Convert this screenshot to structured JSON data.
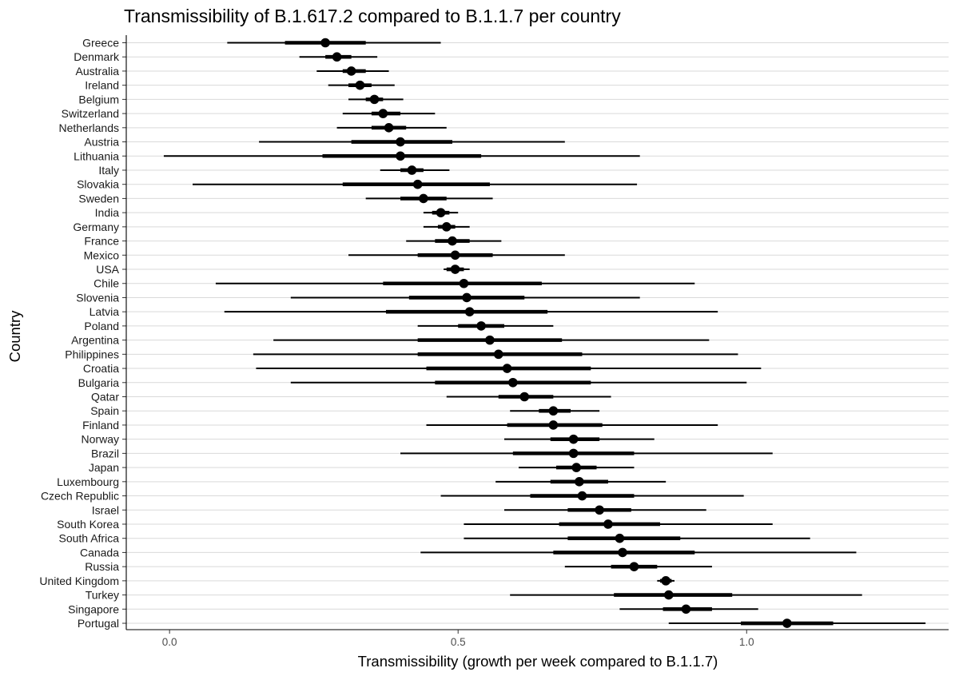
{
  "chart_data": {
    "type": "scatter",
    "title": "Transmissibility of B.1.617.2 compared to B.1.1.7 per country",
    "xlabel": "Transmissibility (growth per week compared to B.1.1.7)",
    "ylabel": "Country",
    "xlim": [
      -0.075,
      1.35
    ],
    "x_ticks": [
      0.0,
      0.5,
      1.0
    ],
    "x_tick_labels": [
      "0.0",
      "0.5",
      "1.0"
    ],
    "grid": "horizontal major lines per country",
    "marker": "point estimate with inner (thick) and outer (thin) interval",
    "series": [
      {
        "country": "Greece",
        "estimate": 0.27,
        "inner": [
          0.2,
          0.34
        ],
        "outer": [
          0.1,
          0.47
        ]
      },
      {
        "country": "Denmark",
        "estimate": 0.29,
        "inner": [
          0.27,
          0.315
        ],
        "outer": [
          0.225,
          0.36
        ]
      },
      {
        "country": "Australia",
        "estimate": 0.315,
        "inner": [
          0.3,
          0.34
        ],
        "outer": [
          0.255,
          0.38
        ]
      },
      {
        "country": "Ireland",
        "estimate": 0.33,
        "inner": [
          0.31,
          0.35
        ],
        "outer": [
          0.275,
          0.39
        ]
      },
      {
        "country": "Belgium",
        "estimate": 0.355,
        "inner": [
          0.34,
          0.37
        ],
        "outer": [
          0.31,
          0.405
        ]
      },
      {
        "country": "Switzerland",
        "estimate": 0.37,
        "inner": [
          0.35,
          0.4
        ],
        "outer": [
          0.3,
          0.46
        ]
      },
      {
        "country": "Netherlands",
        "estimate": 0.38,
        "inner": [
          0.35,
          0.41
        ],
        "outer": [
          0.29,
          0.48
        ]
      },
      {
        "country": "Austria",
        "estimate": 0.4,
        "inner": [
          0.315,
          0.49
        ],
        "outer": [
          0.155,
          0.685
        ]
      },
      {
        "country": "Lithuania",
        "estimate": 0.4,
        "inner": [
          0.265,
          0.54
        ],
        "outer": [
          -0.01,
          0.815
        ]
      },
      {
        "country": "Italy",
        "estimate": 0.42,
        "inner": [
          0.4,
          0.44
        ],
        "outer": [
          0.365,
          0.485
        ]
      },
      {
        "country": "Slovakia",
        "estimate": 0.43,
        "inner": [
          0.3,
          0.555
        ],
        "outer": [
          0.04,
          0.81
        ]
      },
      {
        "country": "Sweden",
        "estimate": 0.44,
        "inner": [
          0.4,
          0.48
        ],
        "outer": [
          0.34,
          0.56
        ]
      },
      {
        "country": "India",
        "estimate": 0.47,
        "inner": [
          0.455,
          0.485
        ],
        "outer": [
          0.44,
          0.5
        ]
      },
      {
        "country": "Germany",
        "estimate": 0.48,
        "inner": [
          0.465,
          0.495
        ],
        "outer": [
          0.44,
          0.52
        ]
      },
      {
        "country": "France",
        "estimate": 0.49,
        "inner": [
          0.46,
          0.52
        ],
        "outer": [
          0.41,
          0.575
        ]
      },
      {
        "country": "Mexico",
        "estimate": 0.495,
        "inner": [
          0.43,
          0.56
        ],
        "outer": [
          0.31,
          0.685
        ]
      },
      {
        "country": "USA",
        "estimate": 0.495,
        "inner": [
          0.48,
          0.51
        ],
        "outer": [
          0.475,
          0.52
        ]
      },
      {
        "country": "Chile",
        "estimate": 0.51,
        "inner": [
          0.37,
          0.645
        ],
        "outer": [
          0.08,
          0.91
        ]
      },
      {
        "country": "Slovenia",
        "estimate": 0.515,
        "inner": [
          0.415,
          0.615
        ],
        "outer": [
          0.21,
          0.815
        ]
      },
      {
        "country": "Latvia",
        "estimate": 0.52,
        "inner": [
          0.375,
          0.655
        ],
        "outer": [
          0.095,
          0.95
        ]
      },
      {
        "country": "Poland",
        "estimate": 0.54,
        "inner": [
          0.5,
          0.58
        ],
        "outer": [
          0.43,
          0.665
        ]
      },
      {
        "country": "Argentina",
        "estimate": 0.555,
        "inner": [
          0.43,
          0.68
        ],
        "outer": [
          0.18,
          0.935
        ]
      },
      {
        "country": "Philippines",
        "estimate": 0.57,
        "inner": [
          0.43,
          0.715
        ],
        "outer": [
          0.145,
          0.985
        ]
      },
      {
        "country": "Croatia",
        "estimate": 0.585,
        "inner": [
          0.445,
          0.73
        ],
        "outer": [
          0.15,
          1.025
        ]
      },
      {
        "country": "Bulgaria",
        "estimate": 0.595,
        "inner": [
          0.46,
          0.73
        ],
        "outer": [
          0.21,
          1.0
        ]
      },
      {
        "country": "Qatar",
        "estimate": 0.615,
        "inner": [
          0.57,
          0.665
        ],
        "outer": [
          0.48,
          0.765
        ]
      },
      {
        "country": "Spain",
        "estimate": 0.665,
        "inner": [
          0.64,
          0.695
        ],
        "outer": [
          0.59,
          0.745
        ]
      },
      {
        "country": "Finland",
        "estimate": 0.665,
        "inner": [
          0.585,
          0.75
        ],
        "outer": [
          0.445,
          0.95
        ]
      },
      {
        "country": "Norway",
        "estimate": 0.7,
        "inner": [
          0.66,
          0.745
        ],
        "outer": [
          0.58,
          0.84
        ]
      },
      {
        "country": "Brazil",
        "estimate": 0.7,
        "inner": [
          0.595,
          0.805
        ],
        "outer": [
          0.4,
          1.045
        ]
      },
      {
        "country": "Japan",
        "estimate": 0.705,
        "inner": [
          0.67,
          0.74
        ],
        "outer": [
          0.605,
          0.805
        ]
      },
      {
        "country": "Luxembourg",
        "estimate": 0.71,
        "inner": [
          0.66,
          0.76
        ],
        "outer": [
          0.565,
          0.86
        ]
      },
      {
        "country": "Czech Republic",
        "estimate": 0.715,
        "inner": [
          0.625,
          0.805
        ],
        "outer": [
          0.47,
          0.995
        ]
      },
      {
        "country": "Israel",
        "estimate": 0.745,
        "inner": [
          0.69,
          0.8
        ],
        "outer": [
          0.58,
          0.93
        ]
      },
      {
        "country": "South Korea",
        "estimate": 0.76,
        "inner": [
          0.675,
          0.85
        ],
        "outer": [
          0.51,
          1.045
        ]
      },
      {
        "country": "South Africa",
        "estimate": 0.78,
        "inner": [
          0.69,
          0.885
        ],
        "outer": [
          0.51,
          1.11
        ]
      },
      {
        "country": "Canada",
        "estimate": 0.785,
        "inner": [
          0.665,
          0.91
        ],
        "outer": [
          0.435,
          1.19
        ]
      },
      {
        "country": "Russia",
        "estimate": 0.805,
        "inner": [
          0.765,
          0.845
        ],
        "outer": [
          0.685,
          0.94
        ]
      },
      {
        "country": "United Kingdom",
        "estimate": 0.86,
        "inner": [
          0.85,
          0.87
        ],
        "outer": [
          0.845,
          0.875
        ]
      },
      {
        "country": "Turkey",
        "estimate": 0.865,
        "inner": [
          0.77,
          0.975
        ],
        "outer": [
          0.59,
          1.2
        ]
      },
      {
        "country": "Singapore",
        "estimate": 0.895,
        "inner": [
          0.855,
          0.94
        ],
        "outer": [
          0.78,
          1.02
        ]
      },
      {
        "country": "Portugal",
        "estimate": 1.07,
        "inner": [
          0.99,
          1.15
        ],
        "outer": [
          0.865,
          1.31
        ]
      }
    ]
  }
}
